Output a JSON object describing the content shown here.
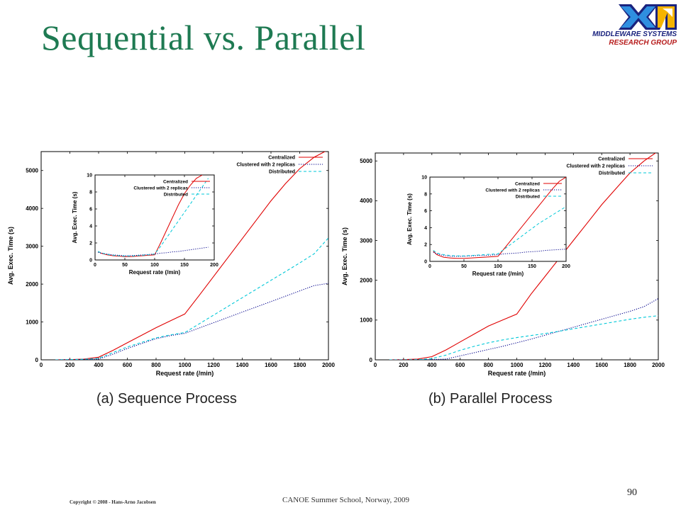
{
  "slide": {
    "title": "Sequential vs. Parallel",
    "logo_line1": "MIDDLEWARE SYSTEMS",
    "logo_line2": "RESEARCH GROUP",
    "caption_a": "(a) Sequence Process",
    "caption_b": "(b) Parallel Process",
    "footer_copyright": "Copyright © 2008 - Hans-Arno Jacobsen",
    "footer_center": "CANOE Summer School, Norway, 2009",
    "page_number": "90"
  },
  "colors": {
    "title": "#1e7a52",
    "centralized": "#e00000",
    "clustered": "#00008b",
    "distributed": "#00c8d8"
  },
  "chart_data": [
    {
      "type": "line",
      "panel": "a",
      "xlabel": "Request rate (/min)",
      "ylabel": "Avg. Exec. Time (s)",
      "xlim": [
        0,
        2000
      ],
      "ylim": [
        0,
        5500
      ],
      "xticks": [
        0,
        200,
        400,
        600,
        800,
        1000,
        1200,
        1400,
        1600,
        1800,
        2000
      ],
      "yticks": [
        0,
        1000,
        2000,
        3000,
        4000,
        5000
      ],
      "grid": false,
      "legend": "top-right",
      "series": [
        {
          "name": "Centralized",
          "style": "solid",
          "color": "#e00000",
          "x": [
            100,
            200,
            300,
            400,
            500,
            600,
            700,
            800,
            900,
            1000,
            1100,
            1200,
            1300,
            1400,
            1500,
            1600,
            1700,
            1800,
            1900,
            2000
          ],
          "y": [
            0,
            5,
            20,
            70,
            250,
            450,
            650,
            850,
            1030,
            1210,
            1700,
            2200,
            2700,
            3200,
            3700,
            4200,
            4650,
            5050,
            5350,
            5550
          ]
        },
        {
          "name": "Clustered with 2 replicas",
          "style": "dotted",
          "color": "#00008b",
          "x": [
            100,
            200,
            300,
            400,
            500,
            600,
            700,
            800,
            900,
            1000,
            1100,
            1200,
            1300,
            1400,
            1500,
            1600,
            1700,
            1800,
            1900,
            2000
          ],
          "y": [
            0,
            5,
            10,
            20,
            150,
            300,
            430,
            560,
            640,
            700,
            840,
            980,
            1120,
            1260,
            1400,
            1540,
            1680,
            1820,
            1960,
            2020
          ]
        },
        {
          "name": "Distributed",
          "style": "dashed",
          "color": "#00c8d8",
          "x": [
            100,
            200,
            300,
            400,
            500,
            600,
            700,
            800,
            900,
            1000,
            1100,
            1200,
            1300,
            1400,
            1500,
            1600,
            1700,
            1800,
            1900,
            2000
          ],
          "y": [
            0,
            5,
            15,
            40,
            190,
            340,
            460,
            580,
            660,
            720,
            950,
            1180,
            1410,
            1640,
            1870,
            2100,
            2330,
            2560,
            2800,
            3220
          ]
        }
      ],
      "inset": {
        "xlabel": "Request rate (/min)",
        "ylabel": "Avg. Exec. Time (s)",
        "xlim": [
          0,
          200
        ],
        "ylim": [
          0,
          10
        ],
        "xticks": [
          0,
          50,
          100,
          150,
          200
        ],
        "yticks": [
          0,
          2,
          4,
          6,
          8,
          10
        ],
        "legend": "top-left",
        "series": [
          {
            "name": "Centralized",
            "style": "solid",
            "color": "#e00000",
            "x": [
              5,
              10,
              20,
              30,
              40,
              50,
              60,
              70,
              80,
              90,
              100,
              110,
              120,
              130,
              140,
              150,
              160,
              170,
              180
            ],
            "y": [
              1.0,
              0.8,
              0.6,
              0.5,
              0.45,
              0.4,
              0.4,
              0.45,
              0.5,
              0.55,
              0.6,
              2.0,
              3.5,
              5.0,
              6.5,
              7.8,
              8.8,
              9.6,
              10.0
            ]
          },
          {
            "name": "Clustered with 2 replicas",
            "style": "dotted",
            "color": "#00008b",
            "x": [
              5,
              10,
              20,
              30,
              40,
              50,
              60,
              70,
              80,
              90,
              100,
              110,
              120,
              130,
              140,
              150,
              160,
              170,
              180,
              190
            ],
            "y": [
              0.9,
              0.8,
              0.7,
              0.6,
              0.55,
              0.5,
              0.52,
              0.55,
              0.6,
              0.65,
              0.7,
              0.8,
              0.85,
              0.95,
              1.0,
              1.1,
              1.2,
              1.3,
              1.4,
              1.5
            ]
          },
          {
            "name": "Distributed",
            "style": "dashed",
            "color": "#00c8d8",
            "x": [
              5,
              10,
              20,
              30,
              40,
              50,
              60,
              70,
              80,
              90,
              100,
              110,
              120,
              130,
              140,
              150,
              160,
              170,
              180,
              190
            ],
            "y": [
              1.0,
              0.85,
              0.65,
              0.55,
              0.5,
              0.45,
              0.45,
              0.5,
              0.55,
              0.6,
              0.7,
              1.6,
              2.6,
              3.6,
              4.6,
              5.6,
              6.6,
              7.6,
              8.6,
              9.6
            ]
          }
        ]
      }
    },
    {
      "type": "line",
      "panel": "b",
      "xlabel": "Request rate (/min)",
      "ylabel": "Avg. Exec. Time (s)",
      "xlim": [
        0,
        2000
      ],
      "ylim": [
        0,
        5200
      ],
      "xticks": [
        0,
        200,
        400,
        600,
        800,
        1000,
        1200,
        1400,
        1600,
        1800,
        2000
      ],
      "yticks": [
        0,
        1000,
        2000,
        3000,
        4000,
        5000
      ],
      "grid": false,
      "legend": "top-right",
      "series": [
        {
          "name": "Centralized",
          "style": "solid",
          "color": "#e00000",
          "x": [
            100,
            200,
            300,
            400,
            500,
            600,
            700,
            800,
            900,
            1000,
            1100,
            1200,
            1300,
            1400,
            1500,
            1600,
            1700,
            1800,
            1900,
            2000
          ],
          "y": [
            0,
            5,
            20,
            80,
            250,
            450,
            650,
            850,
            1000,
            1150,
            1650,
            2100,
            2550,
            3000,
            3450,
            3900,
            4300,
            4700,
            5000,
            5250
          ]
        },
        {
          "name": "Clustered with 2 replicas",
          "style": "dotted",
          "color": "#00008b",
          "x": [
            100,
            200,
            300,
            400,
            500,
            600,
            700,
            800,
            900,
            1000,
            1100,
            1200,
            1300,
            1400,
            1500,
            1600,
            1700,
            1800,
            1900,
            2000
          ],
          "y": [
            0,
            0,
            0,
            5,
            20,
            100,
            180,
            260,
            340,
            430,
            520,
            620,
            720,
            820,
            920,
            1020,
            1120,
            1220,
            1340,
            1540
          ]
        },
        {
          "name": "Distributed",
          "style": "dashed",
          "color": "#00c8d8",
          "x": [
            100,
            200,
            300,
            400,
            500,
            600,
            700,
            800,
            900,
            1000,
            1100,
            1200,
            1300,
            1400,
            1500,
            1600,
            1700,
            1800,
            1900,
            2000
          ],
          "y": [
            0,
            0,
            5,
            30,
            120,
            240,
            340,
            430,
            500,
            560,
            610,
            660,
            720,
            780,
            840,
            900,
            960,
            1020,
            1070,
            1110
          ]
        }
      ],
      "inset": {
        "xlabel": "Request rate (/min)",
        "ylabel": "Avg. Exec. Time (s)",
        "xlim": [
          0,
          200
        ],
        "ylim": [
          0,
          10
        ],
        "xticks": [
          0,
          50,
          100,
          150,
          200
        ],
        "yticks": [
          0,
          2,
          4,
          6,
          8,
          10
        ],
        "legend": "top-left",
        "series": [
          {
            "name": "Centralized",
            "style": "solid",
            "color": "#e00000",
            "x": [
              5,
              10,
              20,
              30,
              40,
              50,
              60,
              70,
              80,
              90,
              100,
              110,
              120,
              130,
              140,
              150,
              160,
              170,
              180,
              190,
              200
            ],
            "y": [
              1.2,
              0.8,
              0.5,
              0.4,
              0.35,
              0.35,
              0.4,
              0.45,
              0.5,
              0.55,
              0.6,
              1.6,
              2.6,
              3.6,
              4.6,
              5.6,
              6.6,
              7.6,
              8.6,
              9.5,
              10.0
            ]
          },
          {
            "name": "Clustered with 2 replicas",
            "style": "dotted",
            "color": "#00008b",
            "x": [
              5,
              10,
              20,
              30,
              40,
              50,
              60,
              70,
              80,
              90,
              100,
              110,
              120,
              130,
              140,
              150,
              160,
              170,
              180,
              190,
              200
            ],
            "y": [
              1.1,
              0.9,
              0.7,
              0.6,
              0.6,
              0.6,
              0.65,
              0.7,
              0.7,
              0.75,
              0.8,
              0.9,
              0.95,
              1.0,
              1.1,
              1.15,
              1.2,
              1.3,
              1.35,
              1.4,
              1.45
            ]
          },
          {
            "name": "Distributed",
            "style": "dashed",
            "color": "#00c8d8",
            "x": [
              5,
              10,
              20,
              30,
              40,
              50,
              60,
              70,
              80,
              90,
              100,
              110,
              120,
              130,
              140,
              150,
              160,
              170,
              180,
              190,
              200
            ],
            "y": [
              1.3,
              1.0,
              0.8,
              0.7,
              0.65,
              0.65,
              0.7,
              0.75,
              0.8,
              0.85,
              0.9,
              1.5,
              2.1,
              2.7,
              3.3,
              3.9,
              4.5,
              5.0,
              5.5,
              6.0,
              6.5
            ]
          }
        ]
      }
    }
  ]
}
